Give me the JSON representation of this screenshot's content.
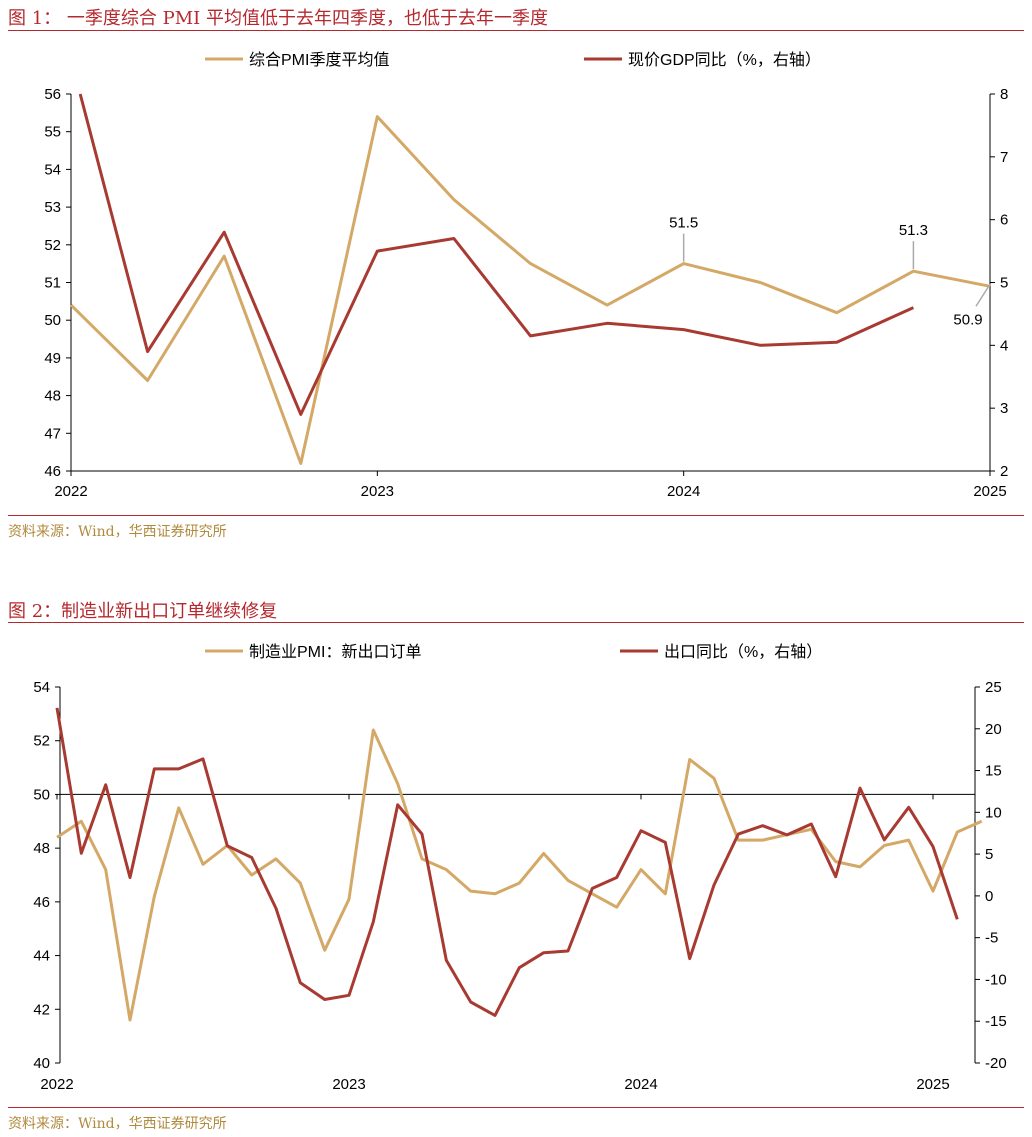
{
  "figures": [
    {
      "title": "图 1： 一季度综合 PMI 平均值低于去年四季度，也低于去年一季度",
      "source": "资料来源：Wind，华西证券研究所"
    },
    {
      "title": "图 2：制造业新出口订单继续修复",
      "source": "资料来源：Wind，华西证券研究所"
    }
  ],
  "chart_data": [
    {
      "type": "line",
      "x_tick_labels": [
        "2022",
        "2023",
        "2024",
        "2025"
      ],
      "ylim_left": [
        46,
        56
      ],
      "yticks_left": [
        46,
        47,
        48,
        49,
        50,
        51,
        52,
        53,
        54,
        55,
        56
      ],
      "ylim_right": [
        2,
        8
      ],
      "yticks_right": [
        2,
        3,
        4,
        5,
        6,
        7,
        8
      ],
      "legend_position": "top-center",
      "grid": false,
      "series": [
        {
          "name": "综合PMI季度平均值",
          "axis": "left",
          "color": "#d4a866",
          "x": [
            2022.0,
            2022.25,
            2022.5,
            2022.75,
            2023.0,
            2023.25,
            2023.5,
            2023.75,
            2024.0,
            2024.25,
            2024.5,
            2024.75,
            2025.0
          ],
          "values": [
            50.4,
            48.4,
            51.7,
            46.2,
            55.4,
            53.2,
            51.5,
            50.4,
            51.5,
            51.0,
            50.2,
            51.3,
            50.9
          ]
        },
        {
          "name": "现价GDP同比（%，右轴）",
          "axis": "right",
          "color": "#a83a32",
          "x": [
            2022.03,
            2022.25,
            2022.5,
            2022.75,
            2023.0,
            2023.25,
            2023.5,
            2023.75,
            2024.0,
            2024.25,
            2024.5,
            2024.75
          ],
          "values": [
            8.0,
            3.9,
            5.8,
            2.9,
            5.5,
            5.7,
            4.15,
            4.35,
            4.25,
            4.0,
            4.05,
            4.6
          ]
        }
      ],
      "annotations": [
        {
          "text": "51.5",
          "x": 2024.0,
          "y": 51.5
        },
        {
          "text": "51.3",
          "x": 2024.75,
          "y": 51.3
        },
        {
          "text": "50.9",
          "x": 2025.0,
          "y": 50.9
        }
      ]
    },
    {
      "type": "line",
      "x_tick_labels": [
        "2022",
        "2023",
        "2024",
        "2025"
      ],
      "ylim_left": [
        40,
        54
      ],
      "yticks_left": [
        40,
        42,
        44,
        46,
        48,
        50,
        52,
        54
      ],
      "ylim_right": [
        -20,
        25
      ],
      "yticks_right": [
        -20,
        -15,
        -10,
        -5,
        0,
        5,
        10,
        15,
        20,
        25
      ],
      "reference_line_left": 50,
      "legend_position": "top-center",
      "grid": false,
      "series": [
        {
          "name": "制造业PMI：新出口订单",
          "axis": "left",
          "color": "#d4a866",
          "x_start": "2022-01",
          "values": [
            48.4,
            49.0,
            47.2,
            41.6,
            46.2,
            49.5,
            47.4,
            48.1,
            47.0,
            47.6,
            46.7,
            44.2,
            46.1,
            52.4,
            50.4,
            47.6,
            47.2,
            46.4,
            46.3,
            46.7,
            47.8,
            46.8,
            46.3,
            45.8,
            47.2,
            46.3,
            51.3,
            50.6,
            48.3,
            48.3,
            48.5,
            48.7,
            47.5,
            47.3,
            48.1,
            48.3,
            46.4,
            48.6,
            49.0
          ],
          "x_offset_months": 0
        },
        {
          "name": "出口同比（%，右轴）",
          "axis": "right",
          "color": "#a83a32",
          "x_start": "2022-01",
          "values": [
            22.5,
            5.1,
            13.3,
            2.2,
            15.2,
            15.2,
            16.4,
            6.0,
            4.6,
            -1.5,
            -10.4,
            -12.4,
            -11.9,
            -3.1,
            10.9,
            7.4,
            -7.7,
            -12.7,
            -14.3,
            -8.6,
            -6.8,
            -6.6,
            0.9,
            2.2,
            7.8,
            6.4,
            -7.5,
            1.3,
            7.4,
            8.4,
            7.3,
            8.6,
            2.3,
            12.9,
            6.7,
            10.6,
            5.9,
            -2.8
          ],
          "x_offset_months": 0
        }
      ]
    }
  ]
}
